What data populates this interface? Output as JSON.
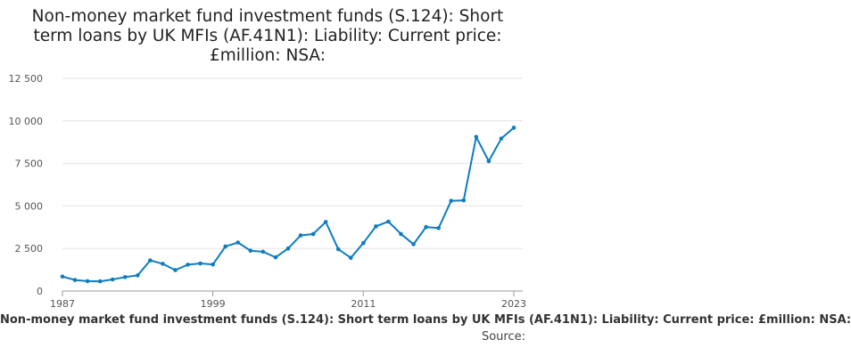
{
  "chart_data": {
    "type": "line",
    "title": "Non-money market fund investment funds (S.124): Short term loans by UK MFIs (AF.41N1): Liability: Current price: £million: NSA:",
    "x_tick_labels": [
      "1987",
      "1999",
      "2011",
      "2023"
    ],
    "y_tick_labels": [
      "0",
      "2 500",
      "5 000",
      "7 500",
      "10 000",
      "12 500"
    ],
    "xlim": [
      1987,
      2023
    ],
    "ylim": [
      0,
      12500
    ],
    "grid": true,
    "series": [
      {
        "name": "Non-money market fund investment funds (S.124): Short term loans by UK MFIs (AF.41N1): Liability: Current price: £million: NSA:",
        "color": "#0f7cbf",
        "points": [
          [
            1987,
            850
          ],
          [
            1988,
            650
          ],
          [
            1989,
            580
          ],
          [
            1990,
            570
          ],
          [
            1991,
            680
          ],
          [
            1992,
            820
          ],
          [
            1993,
            920
          ],
          [
            1994,
            1800
          ],
          [
            1995,
            1600
          ],
          [
            1996,
            1230
          ],
          [
            1997,
            1550
          ],
          [
            1998,
            1620
          ],
          [
            1999,
            1560
          ],
          [
            2000,
            2620
          ],
          [
            2001,
            2850
          ],
          [
            2002,
            2370
          ],
          [
            2003,
            2310
          ],
          [
            2004,
            1980
          ],
          [
            2005,
            2500
          ],
          [
            2006,
            3270
          ],
          [
            2007,
            3350
          ],
          [
            2008,
            4060
          ],
          [
            2009,
            2460
          ],
          [
            2010,
            1950
          ],
          [
            2011,
            2820
          ],
          [
            2012,
            3800
          ],
          [
            2013,
            4080
          ],
          [
            2014,
            3350
          ],
          [
            2015,
            2750
          ],
          [
            2016,
            3760
          ],
          [
            2017,
            3700
          ],
          [
            2018,
            5300
          ],
          [
            2019,
            5330
          ],
          [
            2020,
            9060
          ],
          [
            2021,
            7630
          ],
          [
            2022,
            8960
          ],
          [
            2023,
            9600
          ]
        ]
      }
    ],
    "legend": "bottom",
    "source_label": "Source:"
  }
}
